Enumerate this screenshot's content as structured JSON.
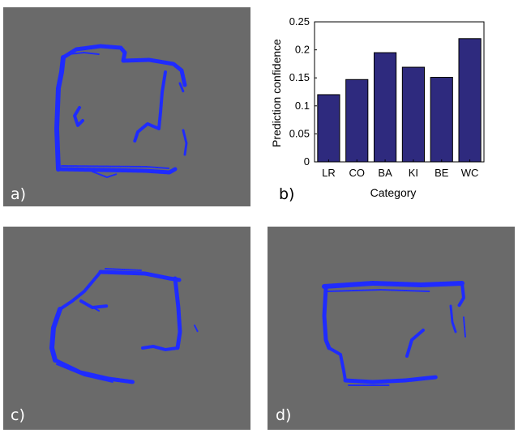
{
  "panels": {
    "a": {
      "label": "a)"
    },
    "b": {
      "label": "b)"
    },
    "c": {
      "label": "c)"
    },
    "d": {
      "label": "d)"
    }
  },
  "colors": {
    "map_background": "#6a6a6a",
    "point_cloud": "#1f2bff",
    "bar_fill": "#2e2a7e",
    "bar_edge": "#000000"
  },
  "chart_data": {
    "type": "bar",
    "categories": [
      "LR",
      "CO",
      "BA",
      "KI",
      "BE",
      "WC"
    ],
    "values": [
      0.12,
      0.147,
      0.195,
      0.169,
      0.151,
      0.22
    ],
    "xlabel": "Category",
    "ylabel": "Prediction confidence",
    "ylim": [
      0,
      0.25
    ],
    "yticks": [
      0,
      0.05,
      0.1,
      0.15,
      0.2,
      0.25
    ],
    "ytick_labels": [
      "0",
      "0.05",
      "0.1",
      "0.15",
      "0.2",
      "0.25"
    ],
    "grid": false,
    "legend": "none"
  }
}
